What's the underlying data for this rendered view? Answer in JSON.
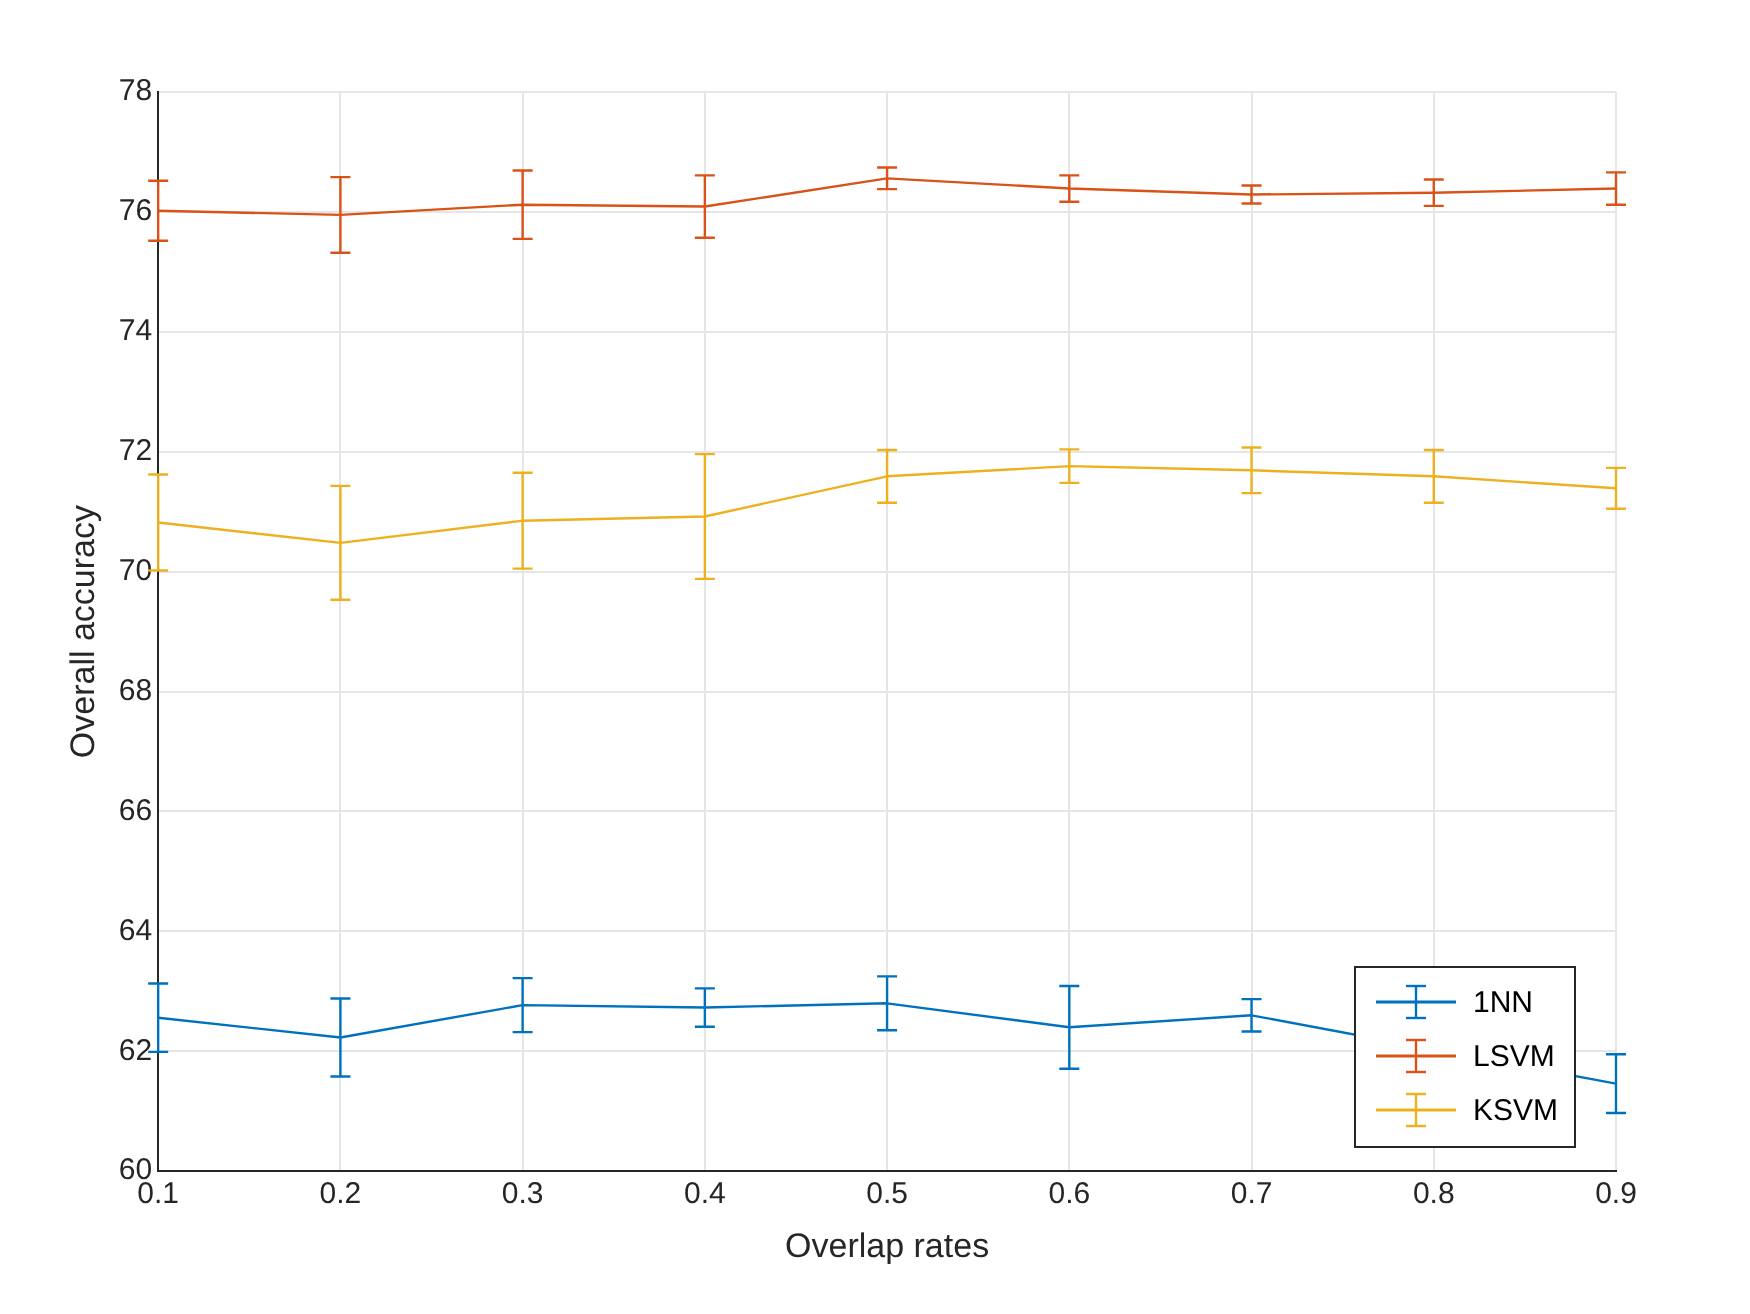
{
  "chart_data": {
    "type": "line",
    "xlabel": "Overlap rates",
    "ylabel": "Overall accuracy",
    "x": [
      0.1,
      0.2,
      0.3,
      0.4,
      0.5,
      0.6,
      0.7,
      0.8,
      0.9
    ],
    "series": [
      {
        "name": "1NN",
        "color": "#0072bd",
        "values": [
          62.56,
          62.23,
          62.77,
          62.73,
          62.8,
          62.4,
          62.6,
          null,
          61.46
        ],
        "errors": [
          0.57,
          0.65,
          0.45,
          0.32,
          0.45,
          0.69,
          0.27,
          null,
          0.49
        ]
      },
      {
        "name": "LSVM",
        "color": "#d95319",
        "values": [
          76.02,
          75.95,
          76.12,
          76.09,
          76.56,
          76.39,
          76.29,
          76.32,
          76.39
        ],
        "errors": [
          0.5,
          0.63,
          0.57,
          0.52,
          0.18,
          0.22,
          0.15,
          0.22,
          0.27
        ]
      },
      {
        "name": "KSVM",
        "color": "#edb120",
        "values": [
          70.82,
          70.48,
          70.85,
          70.92,
          71.59,
          71.76,
          71.69,
          71.59,
          71.39
        ],
        "errors": [
          0.8,
          0.95,
          0.8,
          1.04,
          0.44,
          0.28,
          0.38,
          0.44,
          0.34
        ]
      }
    ],
    "xlim": [
      0.1,
      0.9
    ],
    "xticks": [
      0.1,
      0.2,
      0.3,
      0.4,
      0.5,
      0.6,
      0.7,
      0.8,
      0.9
    ],
    "ylim": [
      60,
      78
    ],
    "yticks": [
      60,
      62,
      64,
      66,
      68,
      70,
      72,
      74,
      76,
      78
    ],
    "grid": true,
    "legend": "bottom right",
    "line_style": "solid"
  }
}
